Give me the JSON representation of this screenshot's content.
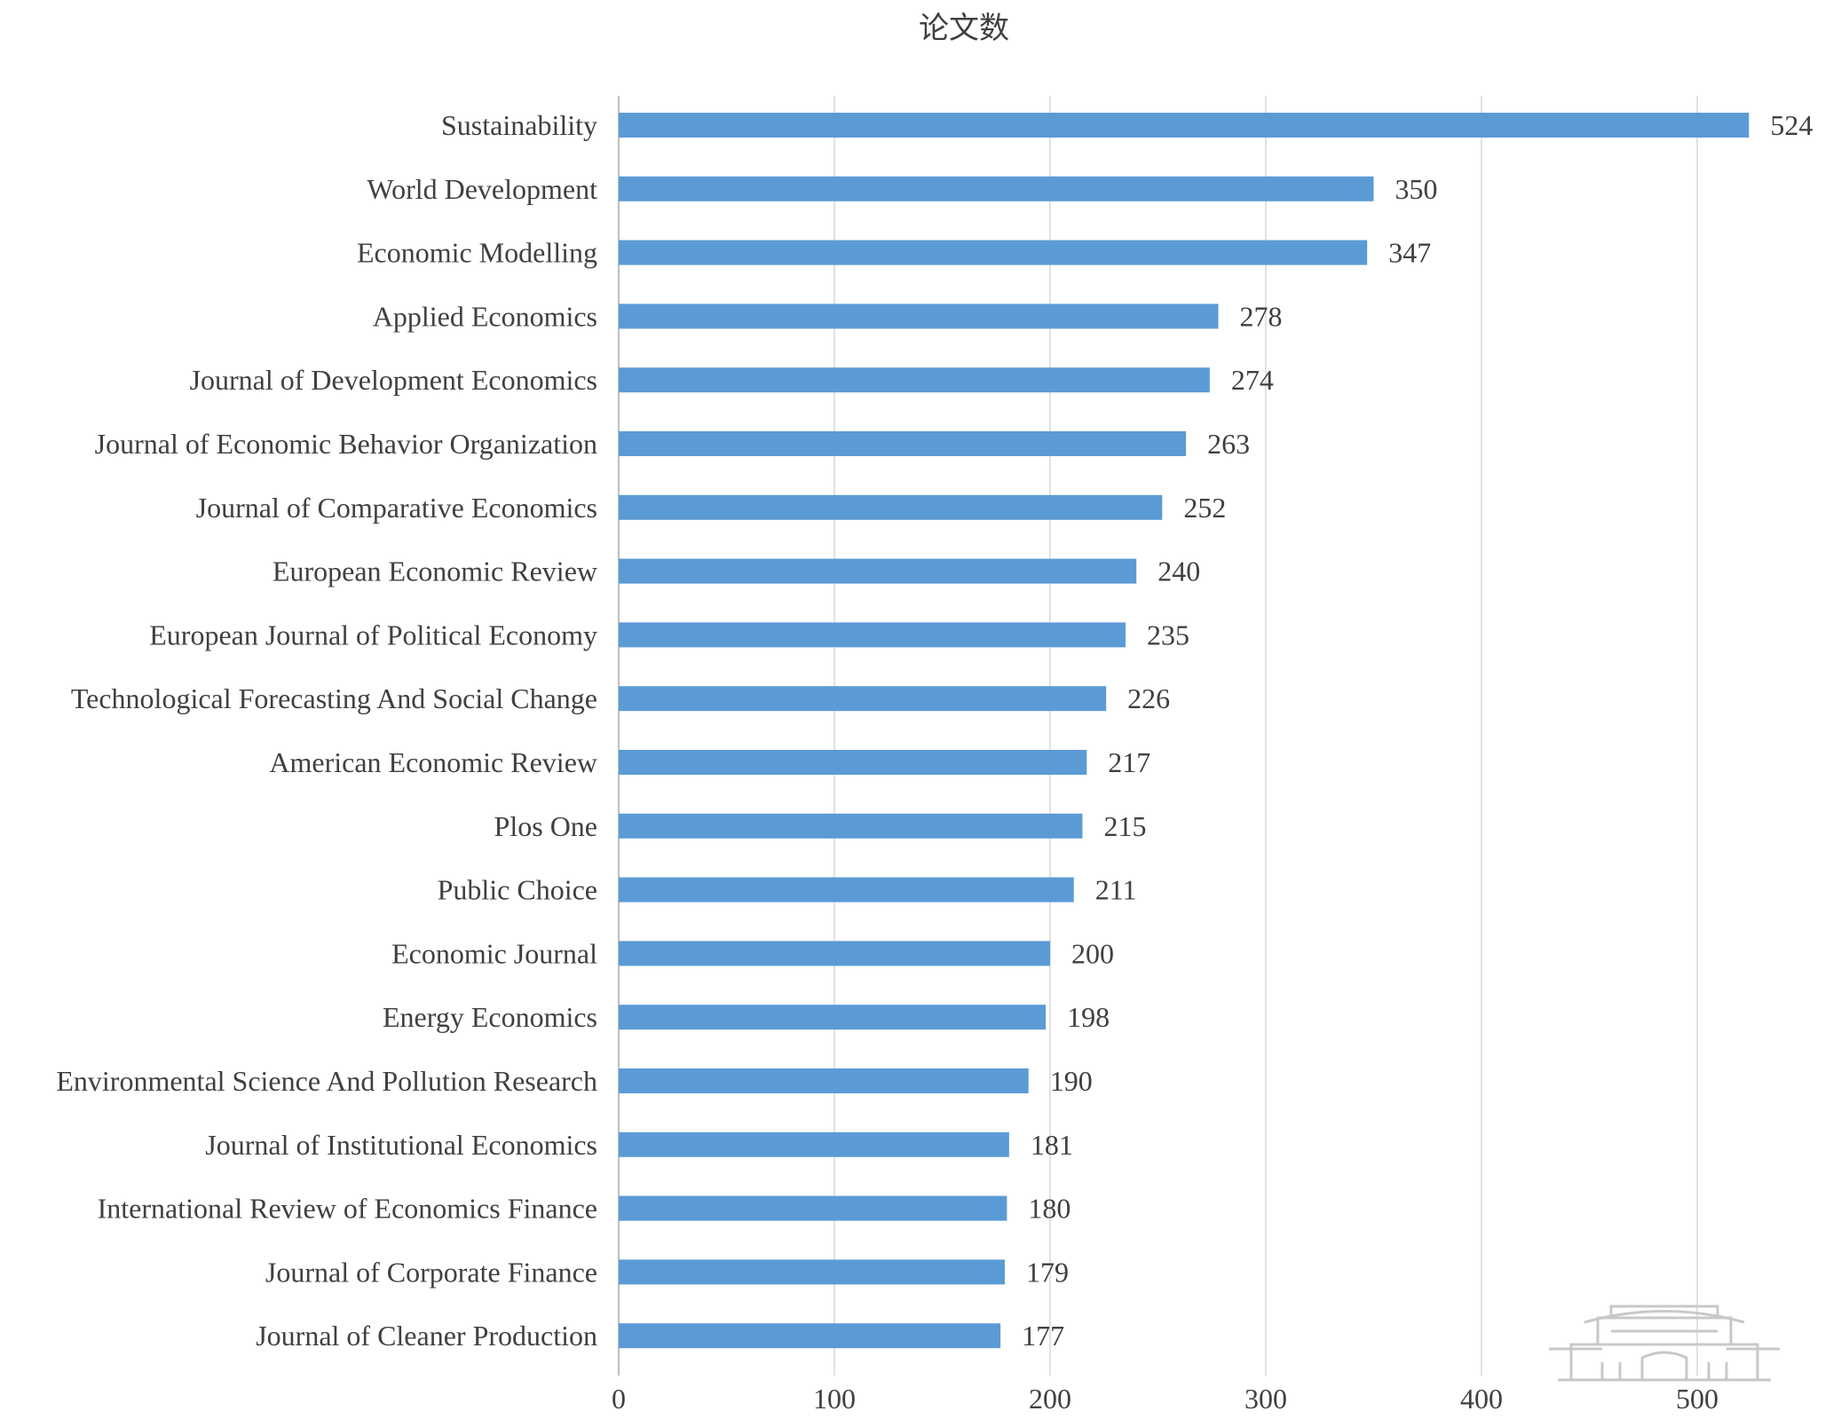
{
  "chart_data": {
    "type": "bar",
    "orientation": "horizontal",
    "title": "论文数",
    "xlabel": "",
    "ylabel": "",
    "categories": [
      "Sustainability",
      "World Development",
      "Economic Modelling",
      "Applied Economics",
      "Journal of Development Economics",
      "Journal of Economic Behavior Organization",
      "Journal of Comparative Economics",
      "European Economic Review",
      "European Journal of Political Economy",
      "Technological Forecasting And Social Change",
      "American Economic Review",
      "Plos One",
      "Public Choice",
      "Economic Journal",
      "Energy Economics",
      "Environmental Science And Pollution Research",
      "Journal of Institutional Economics",
      "International Review of Economics Finance",
      "Journal of Corporate Finance",
      "Journal of Cleaner Production"
    ],
    "values": [
      524,
      350,
      347,
      278,
      274,
      263,
      252,
      240,
      235,
      226,
      217,
      215,
      211,
      200,
      198,
      190,
      181,
      180,
      179,
      177
    ],
    "xlim": [
      0,
      500
    ],
    "xticks": [
      0,
      100,
      200,
      300,
      400,
      500
    ],
    "grid": "vertical",
    "legend": "none",
    "data_labels": true,
    "colors": {
      "bar": "#5B9BD5",
      "grid": "#D9D9D9",
      "axis": "#BFBFBF",
      "text": "#404040",
      "watermark": "#C8C8C8"
    }
  }
}
